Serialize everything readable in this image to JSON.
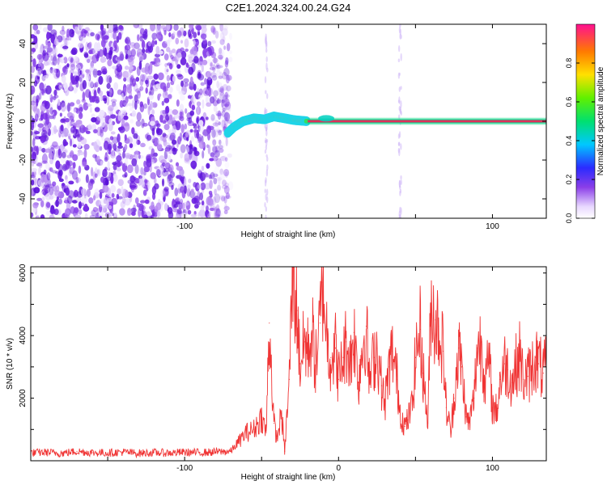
{
  "title": "C2E1.2024.324.00.24.G24",
  "colors": {
    "series": "#f03535",
    "spec_low": "#7a2bd6",
    "spec_core": "#e0305a"
  },
  "chart_data": [
    {
      "type": "heatmap",
      "title": "",
      "xlabel": "Height of straight line (km)",
      "ylabel": "Frequency (Hz)",
      "xlim": [
        -200,
        135
      ],
      "ylim": [
        -50,
        50
      ],
      "x_ticks": [
        "-100",
        "100"
      ],
      "y_ticks": [
        "40",
        "20",
        "0",
        "-20",
        "-40"
      ],
      "colorbar": {
        "label": "Normalized spectral amplitude",
        "range": [
          0,
          1
        ],
        "ticks": [
          "0.0",
          "0.2",
          "0.4",
          "0.6",
          "0.8"
        ]
      },
      "features": {
        "noise_region_x": [
          -200,
          -70
        ],
        "trace_frequency_hz": 0,
        "trace_start_x": -72
      }
    },
    {
      "type": "line",
      "title": "",
      "xlabel": "Height of straight line (km)",
      "ylabel": "SNR (10 * v/v)",
      "xlim": [
        -200,
        135
      ],
      "ylim": [
        0,
        6200
      ],
      "x_ticks": [
        "-100",
        "0",
        "100"
      ],
      "y_ticks": [
        "6000",
        "4000",
        "2000"
      ],
      "series": [
        {
          "name": "",
          "x": [
            -200,
            -190,
            -180,
            -170,
            -160,
            -150,
            -140,
            -130,
            -120,
            -110,
            -100,
            -90,
            -80,
            -70,
            -65,
            -60,
            -55,
            -50,
            -47,
            -45,
            -42,
            -40,
            -37,
            -35,
            -32,
            -30,
            -27,
            -25,
            -22,
            -20,
            -17,
            -15,
            -12,
            -10,
            -7,
            -5,
            -2,
            0,
            3,
            5,
            8,
            10,
            13,
            15,
            18,
            20,
            23,
            25,
            28,
            30,
            33,
            35,
            38,
            40,
            43,
            45,
            48,
            50,
            53,
            55,
            58,
            60,
            63,
            65,
            68,
            70,
            73,
            75,
            78,
            80,
            83,
            85,
            88,
            90,
            93,
            95,
            98,
            100,
            103,
            105,
            108,
            110,
            113,
            115,
            118,
            120,
            123,
            125,
            128,
            130,
            133,
            135
          ],
          "y": [
            250,
            270,
            240,
            300,
            260,
            250,
            280,
            240,
            260,
            250,
            270,
            260,
            280,
            300,
            600,
            900,
            1000,
            1400,
            900,
            4400,
            1200,
            700,
            1500,
            300,
            2600,
            6100,
            4800,
            3100,
            3800,
            3500,
            4100,
            3000,
            4400,
            5700,
            3700,
            3300,
            3600,
            2600,
            3300,
            3800,
            3200,
            4100,
            2500,
            3500,
            4300,
            2500,
            3300,
            3600,
            2400,
            1800,
            3000,
            3500,
            2600,
            1600,
            1100,
            1300,
            1800,
            3300,
            4200,
            2800,
            1200,
            5000,
            4500,
            4300,
            3500,
            1700,
            900,
            2000,
            3600,
            3000,
            1400,
            1200,
            2000,
            3600,
            3800,
            2500,
            3200,
            1700,
            1600,
            2600,
            3100,
            2900,
            2500,
            3000,
            3400,
            2600,
            2700,
            2900,
            3300,
            3100,
            2800,
            3000
          ]
        }
      ]
    }
  ]
}
